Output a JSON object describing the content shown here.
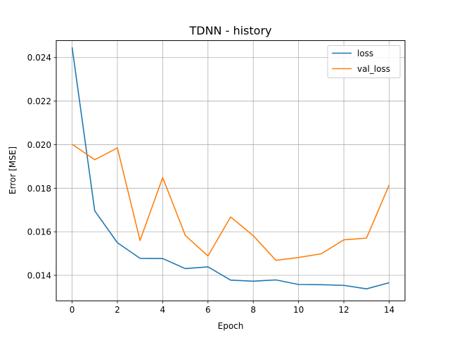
{
  "chart_data": {
    "type": "line",
    "title": "TDNN - history",
    "xlabel": "Epoch",
    "ylabel": "Error [MSE]",
    "xlim": [
      -0.7,
      14.7
    ],
    "ylim": [
      0.01283,
      0.02478
    ],
    "xticks": [
      0,
      2,
      4,
      6,
      8,
      10,
      12,
      14
    ],
    "xtick_labels": [
      "0",
      "2",
      "4",
      "6",
      "8",
      "10",
      "12",
      "14"
    ],
    "yticks": [
      0.014,
      0.016,
      0.018,
      0.02,
      0.022,
      0.024
    ],
    "ytick_labels": [
      "0.014",
      "0.016",
      "0.018",
      "0.020",
      "0.022",
      "0.024"
    ],
    "grid": true,
    "legend_position": "top-right",
    "x": [
      0,
      1,
      2,
      3,
      4,
      5,
      6,
      7,
      8,
      9,
      10,
      11,
      12,
      13,
      14
    ],
    "series": [
      {
        "name": "loss",
        "color": "#1f77b4",
        "values": [
          0.02447,
          0.01696,
          0.0155,
          0.01478,
          0.01477,
          0.01431,
          0.01439,
          0.01378,
          0.01373,
          0.01379,
          0.01358,
          0.01357,
          0.01354,
          0.01338,
          0.01366
        ]
      },
      {
        "name": "val_loss",
        "color": "#ff7f0e",
        "values": [
          0.02002,
          0.01931,
          0.01985,
          0.0156,
          0.01849,
          0.01583,
          0.01489,
          0.01668,
          0.01582,
          0.01469,
          0.01482,
          0.01499,
          0.01563,
          0.01571,
          0.01815
        ]
      }
    ]
  }
}
